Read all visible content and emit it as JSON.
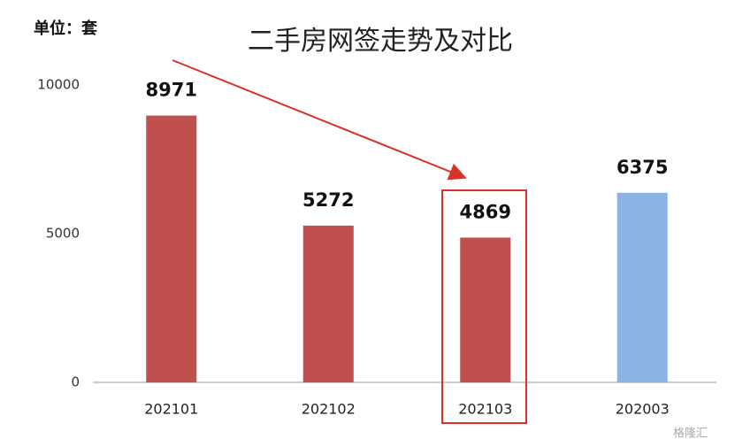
{
  "chart_data": {
    "type": "bar",
    "title": "二手房网签走势及对比",
    "unit_label": "单位：套",
    "categories": [
      "202101",
      "202102",
      "202103",
      "202003"
    ],
    "values": [
      8971,
      5272,
      4869,
      6375
    ],
    "colors": [
      "#c0504d",
      "#c0504d",
      "#c0504d",
      "#8db3e2"
    ],
    "ylim": [
      0,
      10000
    ],
    "yticks": [
      0,
      5000,
      10000
    ],
    "grid": false,
    "watermark": "格隆汇"
  }
}
